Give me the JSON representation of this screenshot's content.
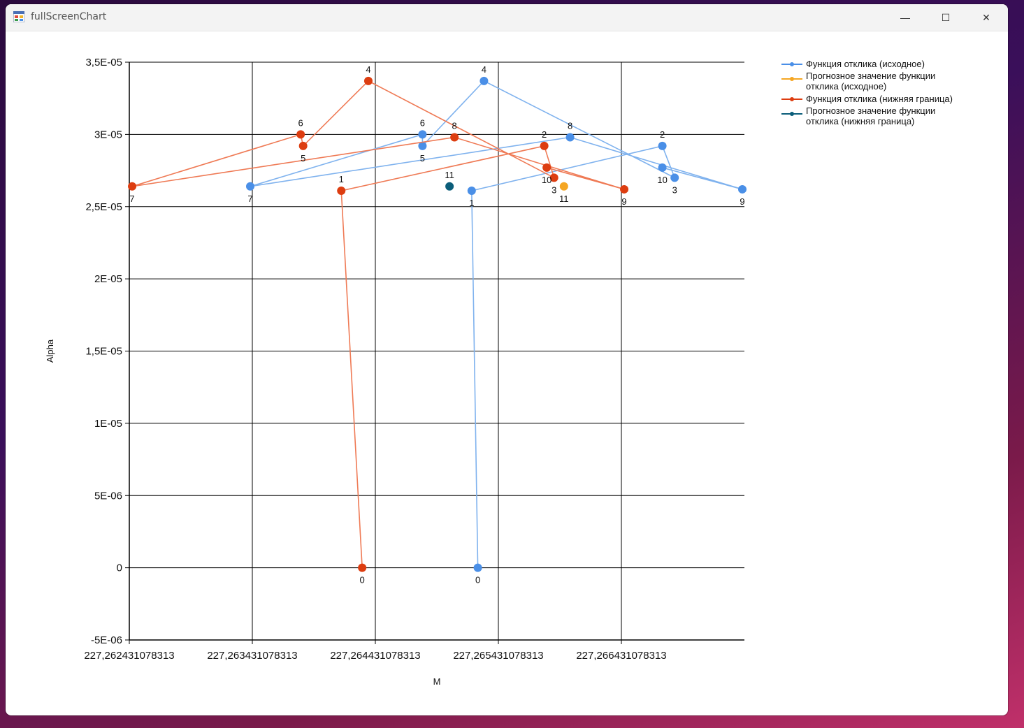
{
  "window": {
    "title": "fullScreenChart",
    "minimize_glyph": "—",
    "maximize_glyph": "☐",
    "close_glyph": "✕"
  },
  "chart_data": {
    "type": "line",
    "xlabel": "M",
    "ylabel": "Alpha",
    "ylim": [
      -5e-06,
      3.5e-05
    ],
    "y_ticks": [
      {
        "value": 3.5e-05,
        "label": "3,5E-05"
      },
      {
        "value": 3e-05,
        "label": "3E-05"
      },
      {
        "value": 2.5e-05,
        "label": "2,5E-05"
      },
      {
        "value": 2e-05,
        "label": "2E-05"
      },
      {
        "value": 1.5e-05,
        "label": "1,5E-05"
      },
      {
        "value": 1e-05,
        "label": "1E-05"
      },
      {
        "value": 5e-06,
        "label": "5E-06"
      },
      {
        "value": 0,
        "label": "0"
      },
      {
        "value": -5e-06,
        "label": "-5E-06"
      }
    ],
    "x_offset_base": 227.262431078313,
    "xlim_offset": [
      0,
      0.005
    ],
    "x_ticks": [
      {
        "offset": 0,
        "label": "227,262431078313"
      },
      {
        "offset": 0.001,
        "label": "227,263431078313"
      },
      {
        "offset": 0.002,
        "label": "227,264431078313"
      },
      {
        "offset": 0.003,
        "label": "227,265431078313"
      },
      {
        "offset": 0.004,
        "label": "227,266431078313"
      }
    ],
    "grid": true,
    "legend_position": "top-right",
    "series": [
      {
        "name": "Функция отклика (исходное)",
        "color": "#4a8fe7",
        "line_color": "#7fb2ee",
        "labels_above": [
          "2",
          "4",
          "6",
          "8"
        ],
        "points": [
          {
            "label": "0",
            "x": 0.002833,
            "y": 0
          },
          {
            "label": "1",
            "x": 0.002783,
            "y": 2.61e-05
          },
          {
            "label": "2",
            "x": 0.004333,
            "y": 2.92e-05
          },
          {
            "label": "3",
            "x": 0.004433,
            "y": 2.7e-05
          },
          {
            "label": "4",
            "x": 0.002883,
            "y": 3.37e-05
          },
          {
            "label": "5",
            "x": 0.002383,
            "y": 2.92e-05
          },
          {
            "label": "6",
            "x": 0.002383,
            "y": 3e-05
          },
          {
            "label": "7",
            "x": 0.000983,
            "y": 2.64e-05
          },
          {
            "label": "8",
            "x": 0.003583,
            "y": 2.98e-05
          },
          {
            "label": "9",
            "x": 0.004983,
            "y": 2.62e-05
          },
          {
            "label": "10",
            "x": 0.004333,
            "y": 2.77e-05
          }
        ]
      },
      {
        "name": "Прогнозное значение функции отклика (исходное)",
        "color": "#f5a623",
        "line_color": "#f5a623",
        "labels_above": [],
        "points": [
          {
            "label": "11",
            "x": 0.003533,
            "y": 2.64e-05
          }
        ]
      },
      {
        "name": "Функция отклика (нижняя граница)",
        "color": "#dd3d10",
        "line_color": "#ef7a55",
        "labels_above": [
          "1",
          "2",
          "4",
          "6",
          "8"
        ],
        "points": [
          {
            "label": "0",
            "x": 0.001893,
            "y": 0
          },
          {
            "label": "1",
            "x": 0.001723,
            "y": 2.61e-05
          },
          {
            "label": "2",
            "x": 0.003373,
            "y": 2.92e-05
          },
          {
            "label": "3",
            "x": 0.003453,
            "y": 2.7e-05
          },
          {
            "label": "4",
            "x": 0.001943,
            "y": 3.37e-05
          },
          {
            "label": "5",
            "x": 0.001413,
            "y": 2.92e-05
          },
          {
            "label": "6",
            "x": 0.001393,
            "y": 3e-05
          },
          {
            "label": "7",
            "x": 2.3e-05,
            "y": 2.64e-05
          },
          {
            "label": "8",
            "x": 0.002643,
            "y": 2.98e-05
          },
          {
            "label": "9",
            "x": 0.004023,
            "y": 2.62e-05
          },
          {
            "label": "10",
            "x": 0.003393,
            "y": 2.77e-05
          }
        ]
      },
      {
        "name": "Прогнозное значение функции отклика (нижняя граница)",
        "color": "#0b5d7a",
        "line_color": "#0b5d7a",
        "labels_above": [
          "11"
        ],
        "points": [
          {
            "label": "11",
            "x": 0.002603,
            "y": 2.64e-05
          }
        ]
      }
    ],
    "legend": [
      {
        "lines": [
          "Функция отклика (исходное)"
        ],
        "color": "#4a8fe7"
      },
      {
        "lines": [
          "Прогнозное значение функции",
          "отклика (исходное)"
        ],
        "color": "#f5a623"
      },
      {
        "lines": [
          "Функция отклика (нижняя граница)"
        ],
        "color": "#dd3d10"
      },
      {
        "lines": [
          "Прогнозное значение функции",
          "отклика (нижняя граница)"
        ],
        "color": "#0b5d7a"
      }
    ]
  }
}
